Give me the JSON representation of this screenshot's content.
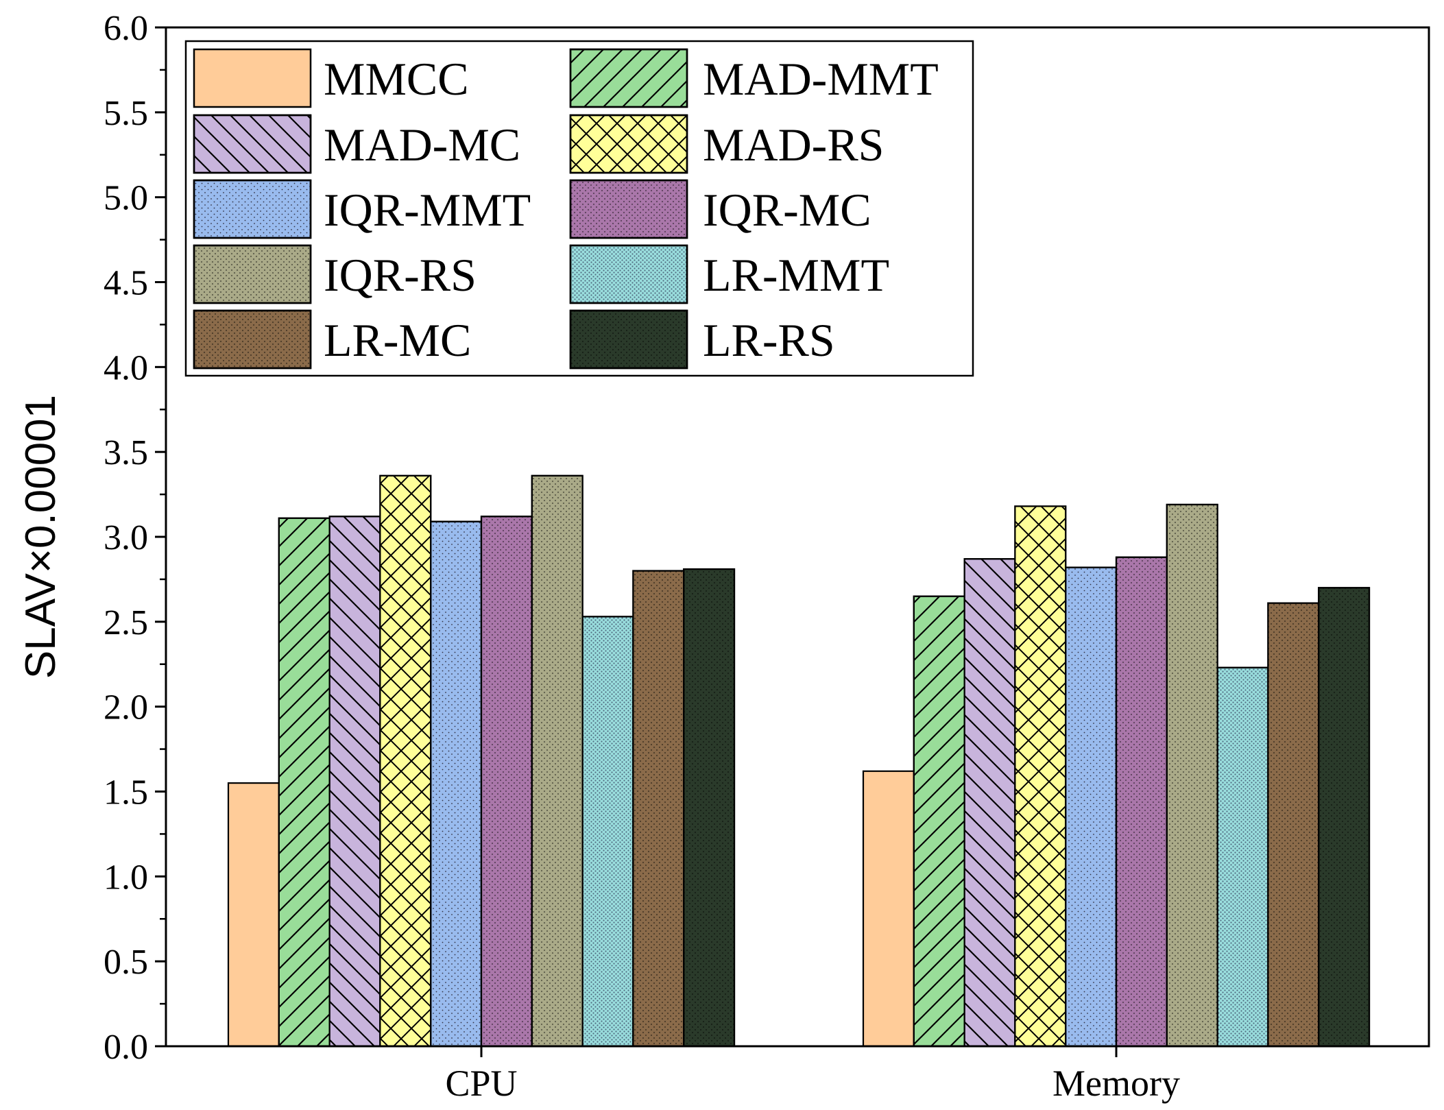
{
  "chart_data": {
    "type": "bar",
    "title": "",
    "xlabel": "",
    "ylabel": "SLAV×0.00001",
    "ylim": [
      0,
      6.0
    ],
    "yticks": [
      "0.0",
      "0.5",
      "1.0",
      "1.5",
      "2.0",
      "2.5",
      "3.0",
      "3.5",
      "4.0",
      "4.5",
      "5.0",
      "5.5",
      "6.0"
    ],
    "categories": [
      "CPU",
      "Memory"
    ],
    "legend_position": "top-left",
    "series": [
      {
        "name": "MMCC",
        "values": [
          1.55,
          1.62
        ],
        "color": "#FFCC99",
        "pattern": "none"
      },
      {
        "name": "MAD-MMT",
        "values": [
          3.11,
          2.65
        ],
        "color": "#99DD99",
        "pattern": "diag-right"
      },
      {
        "name": "MAD-MC",
        "values": [
          3.12,
          2.87
        ],
        "color": "#C8B4DC",
        "pattern": "diag-left"
      },
      {
        "name": "MAD-RS",
        "values": [
          3.36,
          3.18
        ],
        "color": "#FFFF99",
        "pattern": "crosshatch"
      },
      {
        "name": "IQR-MMT",
        "values": [
          3.09,
          2.82
        ],
        "color": "#99BBEE",
        "pattern": "dots-fine"
      },
      {
        "name": "IQR-MC",
        "values": [
          3.12,
          2.88
        ],
        "color": "#AA77AA",
        "pattern": "dots"
      },
      {
        "name": "IQR-RS",
        "values": [
          3.36,
          3.19
        ],
        "color": "#AAAA88",
        "pattern": "dots"
      },
      {
        "name": "LR-MMT",
        "values": [
          2.53,
          2.23
        ],
        "color": "#99DDDD",
        "pattern": "dots-dense"
      },
      {
        "name": "LR-MC",
        "values": [
          2.8,
          2.61
        ],
        "color": "#8B6B4A",
        "pattern": "dots"
      },
      {
        "name": "LR-RS",
        "values": [
          2.81,
          2.7
        ],
        "color": "#2A3A2A",
        "pattern": "dots"
      }
    ]
  }
}
